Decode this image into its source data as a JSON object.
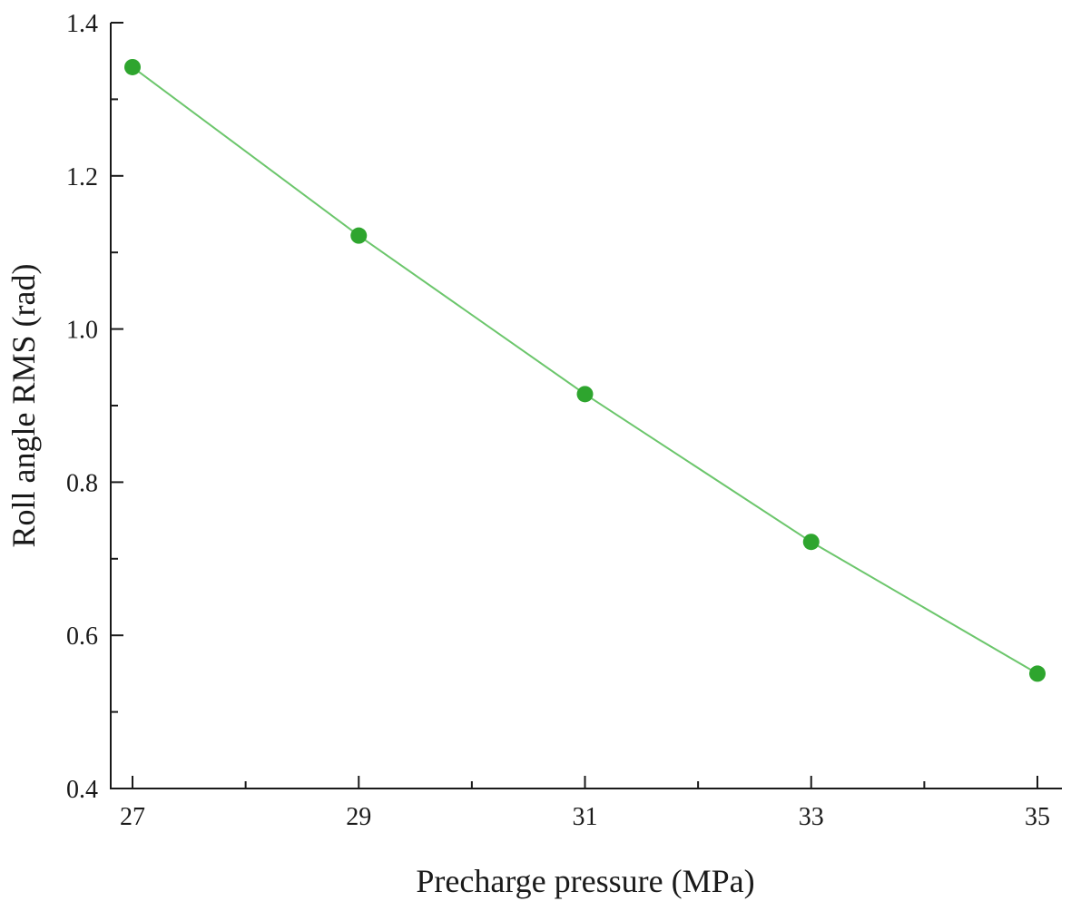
{
  "chart_data": {
    "type": "line",
    "title": "",
    "xlabel": "Precharge pressure (MPa)",
    "ylabel": "Roll angle RMS (rad)",
    "xlim": [
      27,
      35
    ],
    "ylim": [
      0.4,
      1.4
    ],
    "x_ticks": [
      27,
      29,
      31,
      33,
      35
    ],
    "x_tick_labels": [
      "27",
      "29",
      "31",
      "33",
      "35"
    ],
    "x_minor_ticks": [
      28,
      30,
      32,
      34
    ],
    "y_ticks": [
      0.4,
      0.6,
      0.8,
      1.0,
      1.2,
      1.4
    ],
    "y_tick_labels": [
      "0.4",
      "0.6",
      "0.8",
      "1.0",
      "1.2",
      "1.4"
    ],
    "y_minor_ticks": [
      0.5,
      0.7,
      0.9,
      1.1,
      1.3
    ],
    "grid": false,
    "series": [
      {
        "name": "Roll angle RMS",
        "color": "#2ea52e",
        "line_color": "#6cc66c",
        "x": [
          27,
          29,
          31,
          33,
          35
        ],
        "values": [
          1.342,
          1.122,
          0.915,
          0.722,
          0.55
        ]
      }
    ]
  }
}
